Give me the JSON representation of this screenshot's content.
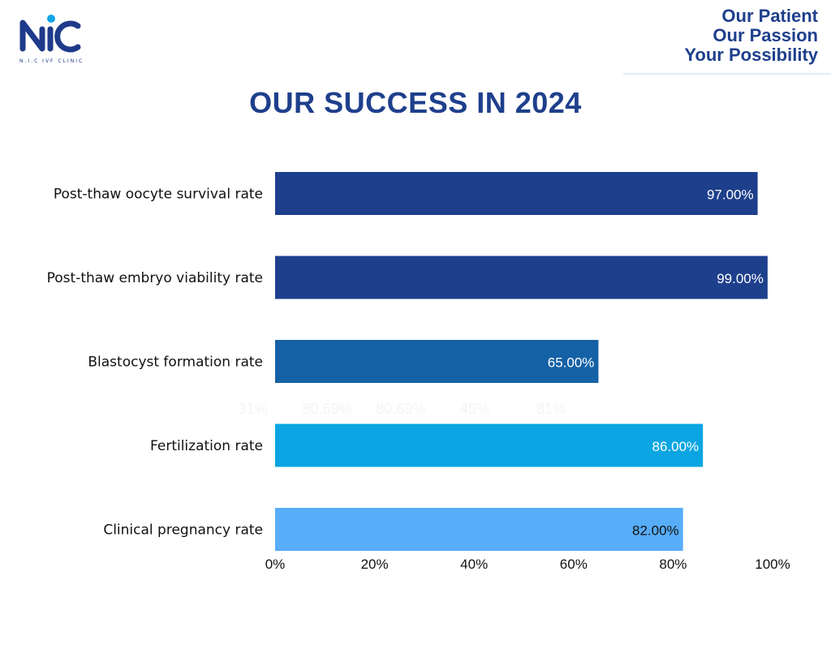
{
  "brand": {
    "logo_text": "NIC",
    "caption": "N.I.C IVF CLINIC",
    "logo_color": "#1e3a8a",
    "accent_color": "#0ea5e9"
  },
  "tagline": [
    "Our Patient",
    "Our Passion",
    "Your Possibility"
  ],
  "chart_data": {
    "type": "bar",
    "orientation": "horizontal",
    "title": "OUR SUCCESS IN 2024",
    "categories": [
      "Post-thaw oocyte survival rate",
      "Post-thaw embryo viability rate",
      "Blastocyst formation rate",
      "Fertilization rate",
      "Clinical pregnancy rate"
    ],
    "values": [
      97,
      99,
      65,
      86,
      82
    ],
    "value_labels": [
      "97.00%",
      "99.00%",
      "65.00%",
      "86.00%",
      "82.00%"
    ],
    "colors": [
      "#1e3f8c",
      "#1e3f8c",
      "#1561a6",
      "#0aa5e2",
      "#58adf9"
    ],
    "label_colors": [
      "#ffffff",
      "#ffffff",
      "#ffffff",
      "#ffffff",
      "#111111"
    ],
    "xlim": [
      0,
      100
    ],
    "xticks": [
      "0%",
      "20%",
      "40%",
      "60%",
      "80%",
      "100%"
    ],
    "grid": false,
    "legend": "none",
    "ghost_labels": [
      "31%",
      "80.69%",
      "80.69%",
      "45%",
      "81%"
    ]
  }
}
